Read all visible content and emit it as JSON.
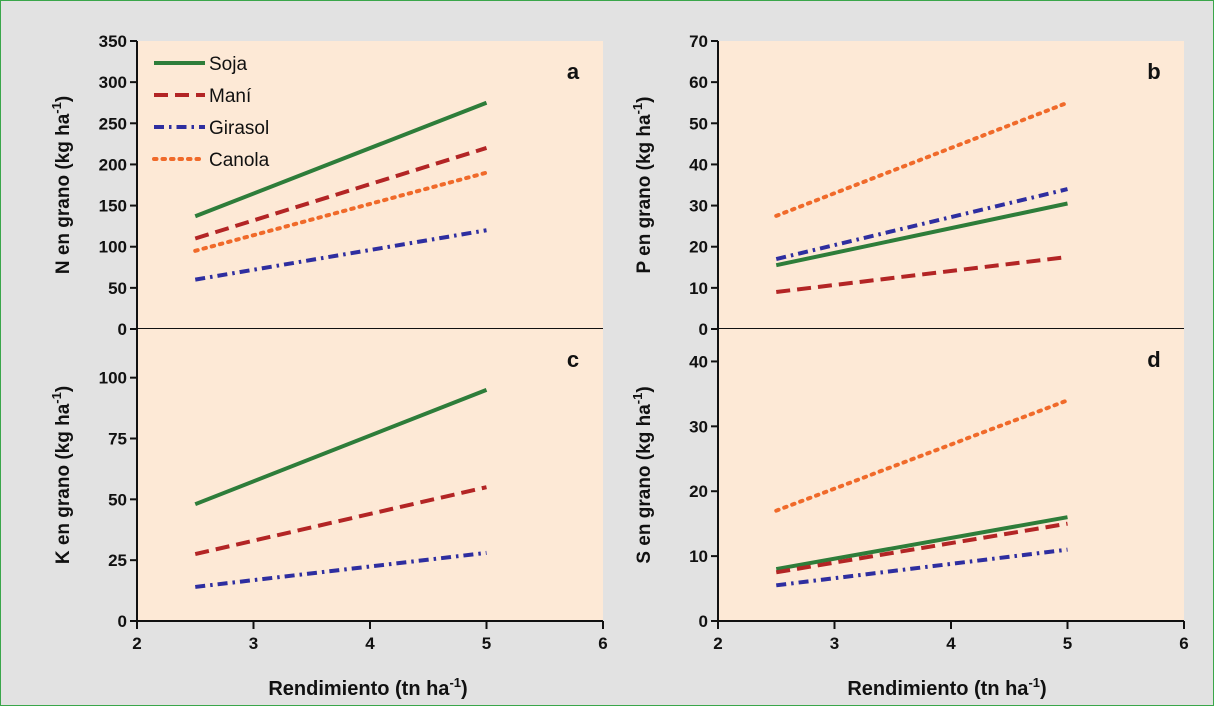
{
  "figure": {
    "x_axis_label": "Rendimiento (tn ha",
    "x_axis_label_sup": "-1",
    "x_axis_label_end": ")"
  },
  "legend": {
    "items": [
      "Soja",
      "Maní",
      "Girasol",
      "Canola"
    ]
  },
  "styles": {
    "Soja": {
      "color": "#2e7d3a",
      "dash": "solid"
    },
    "Maní": {
      "color": "#b32525",
      "dash": "dashed"
    },
    "Girasol": {
      "color": "#2e2ea0",
      "dash": "dashdot"
    },
    "Canola": {
      "color": "#f06a2a",
      "dash": "dotted"
    }
  },
  "colors": {
    "panel_bg": "#fde9d6",
    "page_bg": "#e2e2e2",
    "border": "#3aa64a"
  },
  "chart_data": [
    {
      "id": "a",
      "type": "line",
      "panel_letter": "a",
      "ylabel": "N en grano (kg ha",
      "ylabel_sup": "-1",
      "ylabel_end": ")",
      "xlim": [
        2,
        6
      ],
      "ylim": [
        0,
        350
      ],
      "xticks": [
        2,
        3,
        4,
        5,
        6
      ],
      "yticks": [
        0,
        50,
        100,
        150,
        200,
        250,
        300,
        350
      ],
      "show_xticks": false,
      "series": [
        {
          "name": "Soja",
          "x": [
            2.5,
            5
          ],
          "y": [
            137,
            275
          ]
        },
        {
          "name": "Maní",
          "x": [
            2.5,
            5
          ],
          "y": [
            110,
            220
          ]
        },
        {
          "name": "Girasol",
          "x": [
            2.5,
            5
          ],
          "y": [
            60,
            120
          ]
        },
        {
          "name": "Canola",
          "x": [
            2.5,
            5
          ],
          "y": [
            95,
            190
          ]
        }
      ]
    },
    {
      "id": "b",
      "type": "line",
      "panel_letter": "b",
      "ylabel": "P en grano (kg ha",
      "ylabel_sup": "-1",
      "ylabel_end": ")",
      "xlim": [
        2,
        6
      ],
      "ylim": [
        0,
        70
      ],
      "xticks": [
        2,
        3,
        4,
        5,
        6
      ],
      "yticks": [
        0,
        10,
        20,
        30,
        40,
        50,
        60,
        70
      ],
      "show_xticks": false,
      "series": [
        {
          "name": "Soja",
          "x": [
            2.5,
            5
          ],
          "y": [
            15.5,
            30.5
          ]
        },
        {
          "name": "Maní",
          "x": [
            2.5,
            5
          ],
          "y": [
            9,
            17.5
          ]
        },
        {
          "name": "Girasol",
          "x": [
            2.5,
            5
          ],
          "y": [
            17,
            34
          ]
        },
        {
          "name": "Canola",
          "x": [
            2.5,
            5
          ],
          "y": [
            27.5,
            55
          ]
        }
      ]
    },
    {
      "id": "c",
      "type": "line",
      "panel_letter": "c",
      "ylabel": "K en grano (kg ha",
      "ylabel_sup": "-1",
      "ylabel_end": ")",
      "xlim": [
        2,
        6
      ],
      "ylim": [
        0,
        120
      ],
      "xticks": [
        2,
        3,
        4,
        5,
        6
      ],
      "yticks": [
        0,
        25,
        50,
        75,
        100
      ],
      "show_xticks": true,
      "series": [
        {
          "name": "Soja",
          "x": [
            2.5,
            5
          ],
          "y": [
            48,
            95
          ]
        },
        {
          "name": "Maní",
          "x": [
            2.5,
            5
          ],
          "y": [
            27.5,
            55
          ]
        },
        {
          "name": "Girasol",
          "x": [
            2.5,
            5
          ],
          "y": [
            14,
            28
          ]
        }
      ]
    },
    {
      "id": "d",
      "type": "line",
      "panel_letter": "d",
      "ylabel": "S en grano (kg ha",
      "ylabel_sup": "-1",
      "ylabel_end": ")",
      "xlim": [
        2,
        6
      ],
      "ylim": [
        0,
        45
      ],
      "xticks": [
        2,
        3,
        4,
        5,
        6
      ],
      "yticks": [
        0,
        10,
        20,
        30,
        40
      ],
      "show_xticks": true,
      "series": [
        {
          "name": "Soja",
          "x": [
            2.5,
            5
          ],
          "y": [
            8,
            16
          ]
        },
        {
          "name": "Maní",
          "x": [
            2.5,
            5
          ],
          "y": [
            7.5,
            15
          ]
        },
        {
          "name": "Girasol",
          "x": [
            2.5,
            5
          ],
          "y": [
            5.5,
            11
          ]
        },
        {
          "name": "Canola",
          "x": [
            2.5,
            5
          ],
          "y": [
            17,
            34
          ]
        }
      ]
    }
  ]
}
